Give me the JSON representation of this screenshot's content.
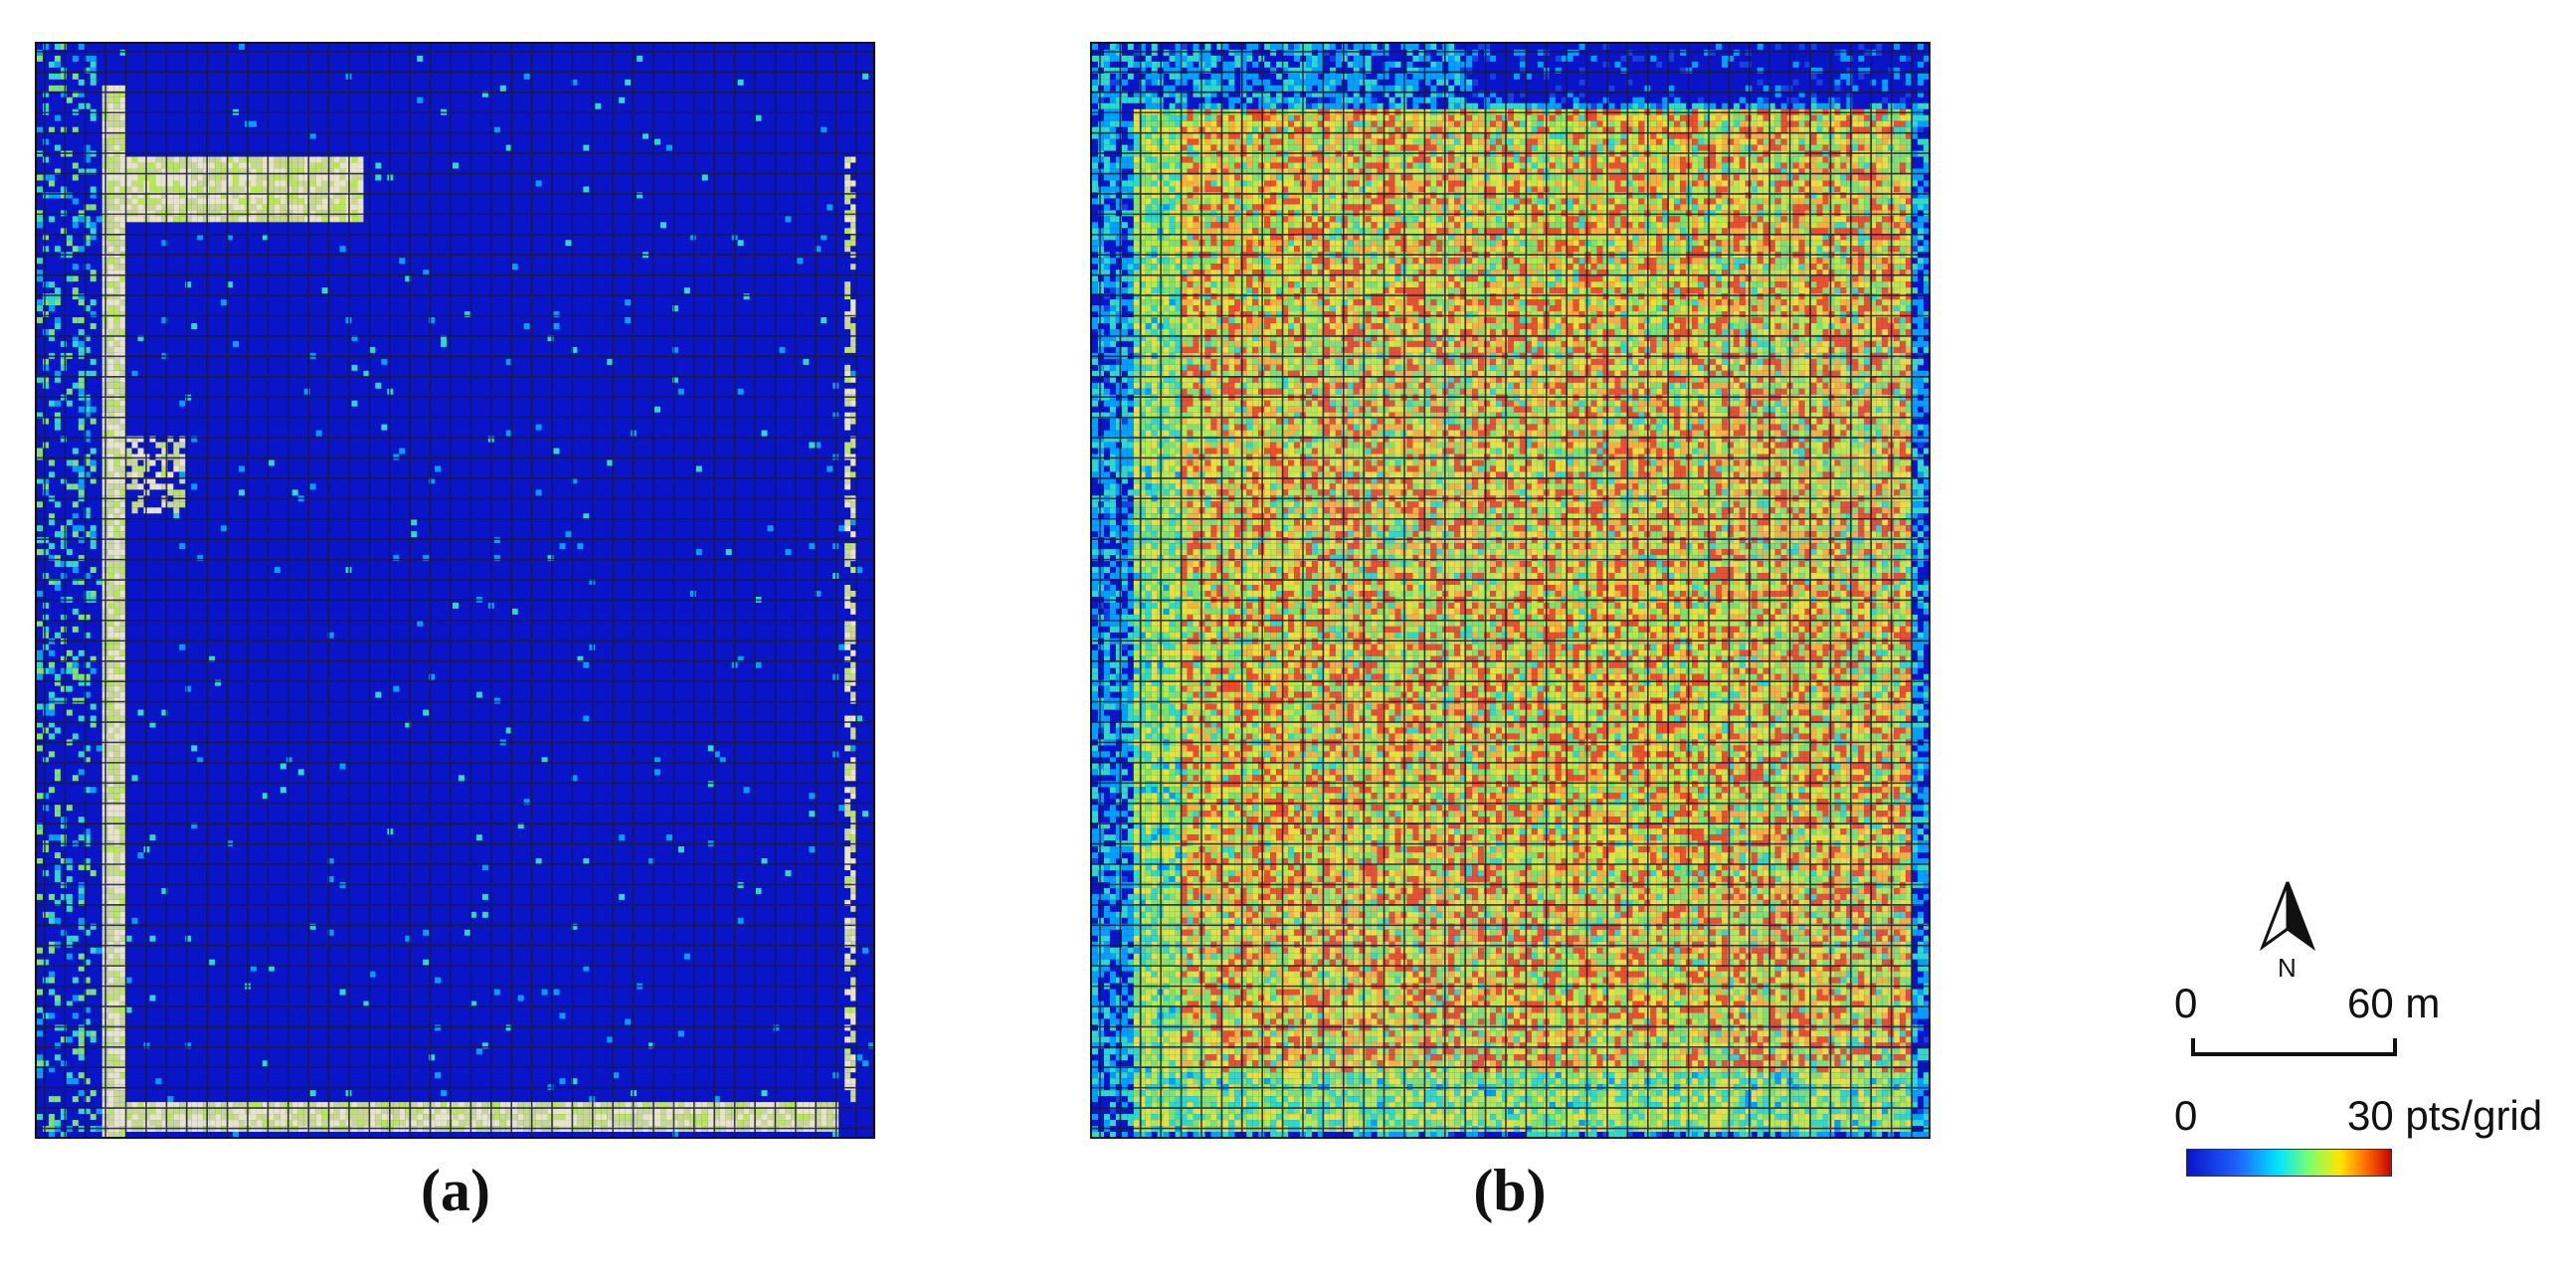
{
  "panels": [
    {
      "id": "a",
      "caption": "(a)"
    },
    {
      "id": "b",
      "caption": "(b)"
    }
  ],
  "legend": {
    "north_label": "N",
    "scale_start": "0",
    "scale_end": "60 m",
    "density_min": "0",
    "density_max": "30 pts/grid"
  },
  "colors": {
    "low": "#0a14c8",
    "mid": "#00e6ff",
    "high": "#ffe600",
    "max": "#c80000",
    "grid_line": "#1a1a3a"
  }
}
